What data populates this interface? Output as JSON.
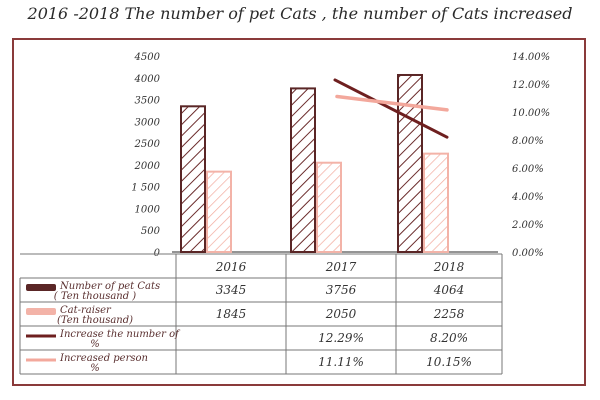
{
  "chart_data": {
    "type": "bar",
    "title": "2016 -2018 The number of pet Cats , the number of Cats increased",
    "categories": [
      "2016",
      "2017",
      "2018"
    ],
    "left_axis": {
      "ticks": [
        "4500",
        "4000",
        "3500",
        "3000",
        "2500",
        "2000",
        "1 500",
        "1000",
        "500",
        "0"
      ],
      "ylim": [
        0,
        4500
      ]
    },
    "right_axis": {
      "ticks": [
        "14.00%",
        "12.00%",
        "10.00%",
        "8.00%",
        "6.00%",
        "4.00%",
        "2.00%",
        "0.00%"
      ],
      "ylim": [
        0,
        14
      ]
    },
    "series": [
      {
        "name": "Number of pet Cats",
        "unit": "( Ten thousand )",
        "kind": "bar",
        "color": "#5a2626",
        "values": [
          3345,
          3756,
          4064
        ],
        "labels": [
          "3345",
          "3756",
          "4064"
        ]
      },
      {
        "name": "Cat-raiser",
        "unit": "(Ten thousand)",
        "kind": "bar",
        "color": "#f3b3a8",
        "values": [
          1845,
          2050,
          2258
        ],
        "labels": [
          "1845",
          "2050",
          "2258"
        ]
      },
      {
        "name": "Increase the number of",
        "unit": "%",
        "kind": "line",
        "axis": "right",
        "color": "#6e1f1f",
        "values": [
          null,
          12.29,
          8.2
        ],
        "labels": [
          "",
          "12.29%",
          "8.20%"
        ]
      },
      {
        "name": "Increased person",
        "unit": "%",
        "kind": "line",
        "axis": "right",
        "color": "#f3a89c",
        "values": [
          null,
          11.11,
          10.15
        ],
        "labels": [
          "",
          "11.11%",
          "10.15%"
        ]
      }
    ]
  }
}
